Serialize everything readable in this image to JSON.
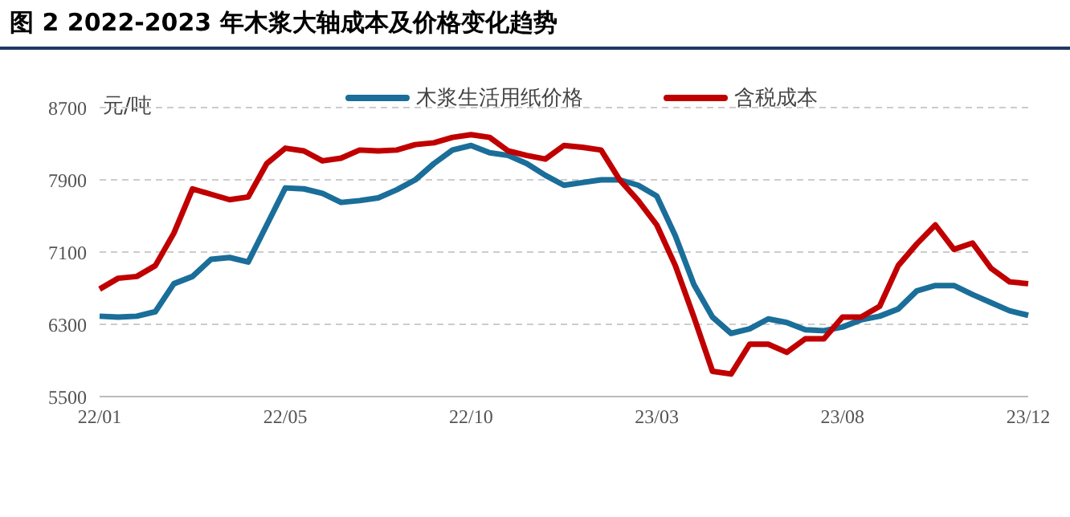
{
  "chart_data": {
    "type": "line",
    "title": "图 2 2022-2023 年木浆大轴成本及价格变化趋势",
    "ylabel": "元/吨",
    "categories": [
      "22/01",
      null,
      null,
      null,
      null,
      null,
      null,
      null,
      null,
      null,
      "22/05",
      null,
      null,
      null,
      null,
      null,
      null,
      null,
      null,
      null,
      "22/10",
      null,
      null,
      null,
      null,
      null,
      null,
      null,
      null,
      null,
      "23/03",
      null,
      null,
      null,
      null,
      null,
      null,
      null,
      null,
      null,
      "23/08",
      null,
      null,
      null,
      null,
      null,
      null,
      null,
      null,
      null,
      "23/12"
    ],
    "series": [
      {
        "name": "木浆生活用纸价格",
        "color": "#1a6e99",
        "values": [
          6390,
          6380,
          6390,
          6440,
          6750,
          6830,
          7020,
          7040,
          6990,
          7400,
          7810,
          7800,
          7750,
          7650,
          7670,
          7700,
          7790,
          7900,
          8080,
          8230,
          8280,
          8200,
          8170,
          8080,
          7950,
          7840,
          7870,
          7900,
          7900,
          7840,
          7720,
          7280,
          6740,
          6380,
          6200,
          6250,
          6360,
          6320,
          6240,
          6230,
          6270,
          6350,
          6390,
          6470,
          6670,
          6730,
          6730,
          6630,
          6540,
          6450,
          6400
        ]
      },
      {
        "name": "含税成本",
        "color": "#c00000",
        "values": [
          6690,
          6810,
          6830,
          6950,
          7310,
          7800,
          7740,
          7680,
          7710,
          8080,
          8250,
          8220,
          8110,
          8140,
          8230,
          8220,
          8230,
          8290,
          8310,
          8370,
          8400,
          8370,
          8220,
          8170,
          8130,
          8280,
          8260,
          8230,
          7900,
          7670,
          7400,
          6950,
          6380,
          5780,
          5750,
          6080,
          6080,
          5990,
          6140,
          6140,
          6380,
          6380,
          6500,
          6950,
          7190,
          7400,
          7130,
          7200,
          6920,
          6770,
          6750
        ]
      }
    ],
    "ylim": [
      5500,
      8700
    ],
    "yticks": [
      5500,
      6300,
      7100,
      7900,
      8700
    ],
    "grid": "y",
    "legend": "top",
    "marker": "none",
    "line_style": "solid"
  }
}
